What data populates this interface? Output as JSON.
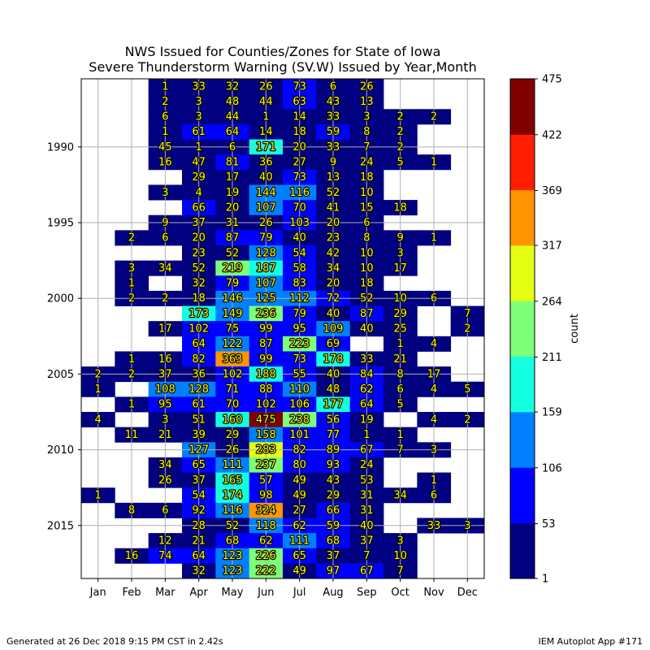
{
  "header": {
    "title_line1": "NWS Issued for Counties/Zones for State of Iowa",
    "title_line2": "Severe Thunderstorm Warning (SV.W) Issued by Year,Month"
  },
  "footer": {
    "left": "Generated at 26 Dec 2018 9:15 PM CST in 2.42s",
    "right": "IEM Autoplot App #171"
  },
  "chart_data": {
    "type": "heatmap",
    "title": "NWS Issued for Counties/Zones for State of Iowa\nSevere Thunderstorm Warning (SV.W) Issued by Year,Month",
    "x_categories": [
      "Jan",
      "Feb",
      "Mar",
      "Apr",
      "May",
      "Jun",
      "Jul",
      "Aug",
      "Sep",
      "Oct",
      "Nov",
      "Dec"
    ],
    "y_range": [
      1986,
      2018
    ],
    "y_ticks": [
      1990,
      1995,
      2000,
      2005,
      2010,
      2015
    ],
    "grid": true,
    "colorbar": {
      "label": "count",
      "ticks": [
        1,
        53,
        106,
        159,
        211,
        264,
        317,
        369,
        422,
        475
      ],
      "colors": [
        "#000080",
        "#0000ff",
        "#0080ff",
        "#15ffe1",
        "#7dff7a",
        "#e4ff13",
        "#ff9400",
        "#ff1e00",
        "#800000"
      ]
    },
    "rows": [
      {
        "year": 1986,
        "values": [
          null,
          null,
          1,
          33,
          32,
          26,
          73,
          6,
          26,
          null,
          null,
          null
        ]
      },
      {
        "year": 1987,
        "values": [
          null,
          null,
          2,
          3,
          48,
          44,
          63,
          43,
          13,
          null,
          null,
          null
        ]
      },
      {
        "year": 1988,
        "values": [
          null,
          null,
          6,
          3,
          44,
          1,
          14,
          33,
          3,
          2,
          2,
          null
        ]
      },
      {
        "year": 1989,
        "values": [
          null,
          null,
          1,
          61,
          64,
          14,
          18,
          59,
          8,
          2,
          null,
          null
        ]
      },
      {
        "year": 1990,
        "values": [
          null,
          null,
          45,
          1,
          6,
          171,
          20,
          33,
          7,
          2,
          null,
          null
        ]
      },
      {
        "year": 1991,
        "values": [
          null,
          null,
          16,
          47,
          81,
          36,
          27,
          9,
          24,
          5,
          1,
          null
        ]
      },
      {
        "year": 1992,
        "values": [
          null,
          null,
          null,
          29,
          17,
          40,
          73,
          13,
          18,
          null,
          null,
          null
        ]
      },
      {
        "year": 1993,
        "values": [
          null,
          null,
          3,
          4,
          19,
          144,
          116,
          52,
          10,
          null,
          null,
          null
        ]
      },
      {
        "year": 1994,
        "values": [
          null,
          null,
          null,
          66,
          20,
          107,
          70,
          41,
          15,
          18,
          null,
          null
        ]
      },
      {
        "year": 1995,
        "values": [
          null,
          null,
          9,
          37,
          31,
          26,
          103,
          20,
          6,
          null,
          null,
          null
        ]
      },
      {
        "year": 1996,
        "values": [
          null,
          2,
          6,
          20,
          87,
          79,
          40,
          23,
          8,
          9,
          1,
          null
        ]
      },
      {
        "year": 1997,
        "values": [
          null,
          null,
          null,
          23,
          52,
          128,
          54,
          42,
          10,
          3,
          null,
          null
        ]
      },
      {
        "year": 1998,
        "values": [
          null,
          3,
          34,
          52,
          219,
          187,
          58,
          34,
          10,
          17,
          null,
          null
        ]
      },
      {
        "year": 1999,
        "values": [
          null,
          1,
          null,
          32,
          79,
          107,
          83,
          20,
          18,
          null,
          null,
          null
        ]
      },
      {
        "year": 2000,
        "values": [
          null,
          2,
          2,
          18,
          146,
          125,
          112,
          72,
          52,
          10,
          6,
          null
        ]
      },
      {
        "year": 2001,
        "values": [
          null,
          null,
          null,
          173,
          149,
          236,
          79,
          40,
          87,
          29,
          null,
          7
        ]
      },
      {
        "year": 2002,
        "values": [
          null,
          null,
          17,
          102,
          75,
          99,
          95,
          109,
          40,
          25,
          null,
          2
        ]
      },
      {
        "year": 2003,
        "values": [
          null,
          null,
          null,
          64,
          122,
          87,
          223,
          69,
          null,
          1,
          4,
          null
        ]
      },
      {
        "year": 2004,
        "values": [
          null,
          1,
          16,
          82,
          363,
          99,
          73,
          178,
          33,
          21,
          null,
          null
        ]
      },
      {
        "year": 2005,
        "values": [
          2,
          2,
          37,
          36,
          102,
          188,
          55,
          40,
          84,
          8,
          17,
          null
        ]
      },
      {
        "year": 2006,
        "values": [
          1,
          null,
          108,
          128,
          71,
          88,
          110,
          48,
          62,
          6,
          4,
          5
        ]
      },
      {
        "year": 2007,
        "values": [
          null,
          1,
          95,
          61,
          70,
          102,
          106,
          177,
          64,
          5,
          null,
          null
        ]
      },
      {
        "year": 2008,
        "values": [
          4,
          null,
          3,
          51,
          160,
          475,
          238,
          56,
          19,
          null,
          4,
          2
        ]
      },
      {
        "year": 2009,
        "values": [
          null,
          11,
          21,
          39,
          29,
          158,
          101,
          77,
          1,
          1,
          null,
          null
        ]
      },
      {
        "year": 2010,
        "values": [
          null,
          null,
          null,
          127,
          26,
          283,
          82,
          89,
          67,
          7,
          3,
          null
        ]
      },
      {
        "year": 2011,
        "values": [
          null,
          null,
          34,
          65,
          111,
          237,
          80,
          93,
          24,
          null,
          null,
          null
        ]
      },
      {
        "year": 2012,
        "values": [
          null,
          null,
          26,
          37,
          165,
          57,
          49,
          43,
          53,
          null,
          1,
          null
        ]
      },
      {
        "year": 2013,
        "values": [
          1,
          null,
          null,
          54,
          174,
          98,
          49,
          29,
          31,
          34,
          6,
          null
        ]
      },
      {
        "year": 2014,
        "values": [
          null,
          8,
          6,
          92,
          116,
          324,
          27,
          66,
          31,
          null,
          null,
          null
        ]
      },
      {
        "year": 2015,
        "values": [
          null,
          null,
          null,
          28,
          52,
          118,
          62,
          59,
          40,
          null,
          33,
          3
        ]
      },
      {
        "year": 2016,
        "values": [
          null,
          null,
          12,
          21,
          68,
          62,
          111,
          68,
          37,
          3,
          null,
          null
        ]
      },
      {
        "year": 2017,
        "values": [
          null,
          16,
          74,
          64,
          123,
          226,
          65,
          37,
          7,
          10,
          null,
          null
        ]
      },
      {
        "year": 2018,
        "values": [
          null,
          null,
          null,
          32,
          123,
          222,
          49,
          97,
          67,
          7,
          null,
          null
        ]
      }
    ]
  }
}
